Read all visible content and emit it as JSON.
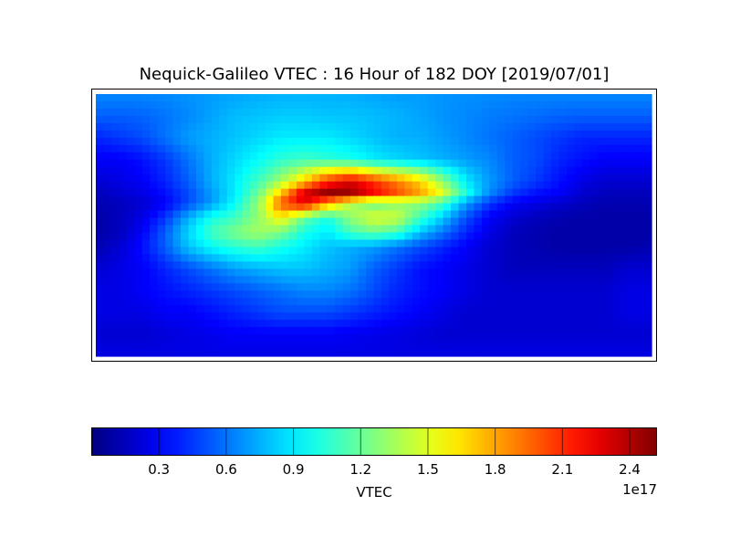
{
  "chart_data": {
    "type": "heatmap",
    "title": "Nequick-Galileo VTEC : 16 Hour of 182 DOY [2019/07/01]",
    "projection": "equirectangular world map with coastlines",
    "lon": [
      -180,
      -165,
      -150,
      -135,
      -120,
      -105,
      -90,
      -75,
      -60,
      -45,
      -30,
      -15,
      0,
      15,
      30,
      45,
      60,
      75,
      90,
      105,
      120,
      135,
      150,
      165,
      180
    ],
    "lat": [
      90,
      75,
      60,
      45,
      30,
      22,
      15,
      5,
      -5,
      -15,
      -30,
      -45,
      -60,
      -75,
      -90
    ],
    "values_unit_scale": "1e17",
    "values": [
      [
        0.65,
        0.65,
        0.65,
        0.66,
        0.68,
        0.7,
        0.72,
        0.74,
        0.75,
        0.75,
        0.75,
        0.74,
        0.72,
        0.7,
        0.7,
        0.68,
        0.67,
        0.66,
        0.65,
        0.65,
        0.65,
        0.65,
        0.65,
        0.65,
        0.65
      ],
      [
        0.55,
        0.55,
        0.56,
        0.6,
        0.65,
        0.72,
        0.78,
        0.8,
        0.82,
        0.82,
        0.8,
        0.8,
        0.78,
        0.76,
        0.72,
        0.68,
        0.65,
        0.62,
        0.6,
        0.58,
        0.56,
        0.55,
        0.55,
        0.55,
        0.55
      ],
      [
        0.4,
        0.45,
        0.5,
        0.6,
        0.7,
        0.75,
        0.8,
        0.85,
        0.9,
        0.9,
        0.9,
        0.85,
        0.8,
        0.75,
        0.75,
        0.7,
        0.65,
        0.6,
        0.55,
        0.5,
        0.45,
        0.4,
        0.4,
        0.4,
        0.4
      ],
      [
        0.3,
        0.3,
        0.35,
        0.45,
        0.6,
        0.75,
        0.85,
        0.95,
        1.05,
        1.1,
        1.05,
        1.0,
        0.9,
        0.85,
        0.8,
        0.75,
        0.7,
        0.65,
        0.55,
        0.5,
        0.4,
        0.35,
        0.3,
        0.3,
        0.3
      ],
      [
        0.2,
        0.25,
        0.3,
        0.4,
        0.55,
        0.75,
        0.9,
        1.1,
        1.35,
        1.7,
        2.1,
        2.3,
        2.1,
        1.9,
        1.7,
        1.3,
        0.9,
        0.7,
        0.55,
        0.45,
        0.35,
        0.25,
        0.2,
        0.2,
        0.2
      ],
      [
        0.15,
        0.2,
        0.25,
        0.35,
        0.5,
        0.7,
        0.9,
        1.2,
        1.7,
        2.3,
        2.5,
        2.45,
        2.2,
        2.0,
        1.8,
        1.5,
        1.0,
        0.65,
        0.45,
        0.35,
        0.3,
        0.2,
        0.15,
        0.15,
        0.15
      ],
      [
        0.12,
        0.15,
        0.2,
        0.3,
        0.5,
        0.7,
        0.95,
        1.3,
        2.0,
        2.3,
        1.8,
        1.4,
        1.2,
        1.3,
        1.3,
        1.1,
        0.7,
        0.45,
        0.3,
        0.25,
        0.2,
        0.15,
        0.12,
        0.12,
        0.12
      ],
      [
        0.1,
        0.15,
        0.25,
        0.45,
        0.75,
        1.0,
        1.1,
        1.3,
        1.6,
        1.2,
        1.0,
        1.3,
        1.5,
        1.45,
        1.1,
        0.8,
        0.5,
        0.3,
        0.2,
        0.15,
        0.12,
        0.1,
        0.1,
        0.1,
        0.1
      ],
      [
        0.1,
        0.15,
        0.3,
        0.55,
        0.85,
        1.1,
        1.25,
        1.35,
        1.25,
        1.0,
        0.9,
        1.1,
        1.2,
        1.1,
        0.8,
        0.6,
        0.4,
        0.25,
        0.15,
        0.12,
        0.1,
        0.1,
        0.1,
        0.1,
        0.1
      ],
      [
        0.12,
        0.2,
        0.35,
        0.55,
        0.8,
        0.95,
        1.05,
        1.1,
        1.0,
        0.9,
        0.8,
        0.75,
        0.7,
        0.6,
        0.5,
        0.4,
        0.3,
        0.2,
        0.15,
        0.12,
        0.1,
        0.1,
        0.1,
        0.1,
        0.12
      ],
      [
        0.2,
        0.25,
        0.3,
        0.4,
        0.5,
        0.6,
        0.7,
        0.75,
        0.8,
        0.8,
        0.75,
        0.7,
        0.55,
        0.45,
        0.35,
        0.3,
        0.25,
        0.2,
        0.15,
        0.15,
        0.15,
        0.15,
        0.15,
        0.2,
        0.2
      ],
      [
        0.25,
        0.25,
        0.3,
        0.35,
        0.4,
        0.45,
        0.5,
        0.55,
        0.6,
        0.65,
        0.65,
        0.6,
        0.5,
        0.4,
        0.35,
        0.3,
        0.25,
        0.2,
        0.2,
        0.2,
        0.2,
        0.2,
        0.2,
        0.25,
        0.25
      ],
      [
        0.25,
        0.25,
        0.25,
        0.3,
        0.3,
        0.35,
        0.4,
        0.45,
        0.5,
        0.5,
        0.5,
        0.45,
        0.4,
        0.35,
        0.3,
        0.25,
        0.2,
        0.2,
        0.2,
        0.2,
        0.2,
        0.2,
        0.2,
        0.25,
        0.25
      ],
      [
        0.2,
        0.2,
        0.2,
        0.22,
        0.25,
        0.27,
        0.3,
        0.3,
        0.3,
        0.3,
        0.3,
        0.28,
        0.26,
        0.24,
        0.22,
        0.2,
        0.2,
        0.2,
        0.2,
        0.2,
        0.2,
        0.2,
        0.2,
        0.2,
        0.2
      ],
      [
        0.25,
        0.25,
        0.25,
        0.25,
        0.25,
        0.25,
        0.25,
        0.25,
        0.25,
        0.25,
        0.25,
        0.25,
        0.25,
        0.25,
        0.25,
        0.25,
        0.25,
        0.25,
        0.25,
        0.25,
        0.25,
        0.25,
        0.25,
        0.25,
        0.25
      ]
    ],
    "colormap": "jet",
    "vmin": 0,
    "vmax": 2.52,
    "colorbar": {
      "label": "VTEC",
      "offset_text": "1e17",
      "ticks": [
        0.3,
        0.6,
        0.9,
        1.2,
        1.5,
        1.8,
        2.1,
        2.4
      ],
      "tick_labels": [
        "0.3",
        "0.6",
        "0.9",
        "1.2",
        "1.5",
        "1.8",
        "2.1",
        "2.4"
      ],
      "orientation": "horizontal",
      "placement": "bottom"
    }
  }
}
